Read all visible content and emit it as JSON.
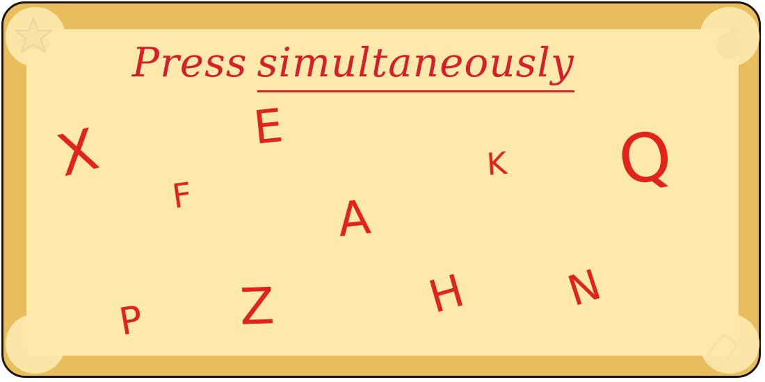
{
  "title": {
    "prefix": "Press",
    "emphasis": "simultaneously"
  },
  "letters": [
    "X",
    "E",
    "K",
    "Q",
    "F",
    "A",
    "P",
    "Z",
    "H",
    "N"
  ],
  "icons": {
    "top_left": "star-icon",
    "top_right": "bomb-icon",
    "bottom_right": "eraser-icon"
  },
  "colors": {
    "accent": "#e2231a",
    "frame": "#e8bd5c",
    "felt": "#fde9ac"
  }
}
